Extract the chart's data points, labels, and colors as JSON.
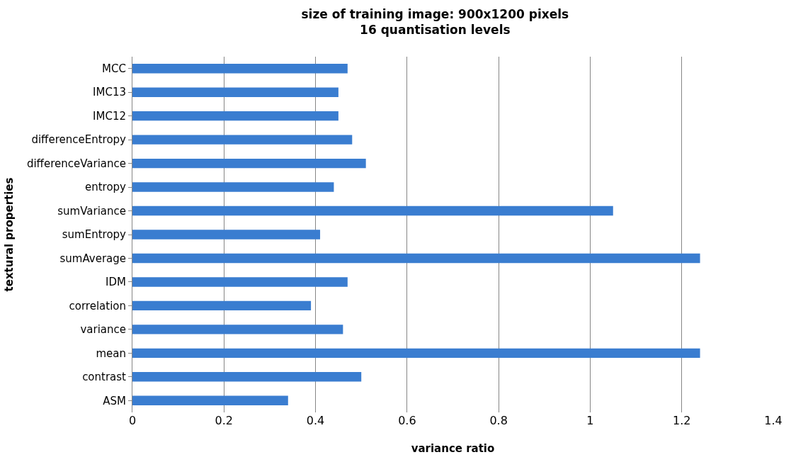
{
  "chart_data": {
    "type": "bar",
    "orientation": "horizontal",
    "title": "size of training image: 900x1200 pixels\n16 quantisation levels",
    "xlabel": "variance ratio",
    "ylabel": "textural properties",
    "categories": [
      "MCC",
      "IMC13",
      "IMC12",
      "differenceEntropy",
      "differenceVariance",
      "entropy",
      "sumVariance",
      "sumEntropy",
      "sumAverage",
      "IDM",
      "correlation",
      "variance",
      "mean",
      "contrast",
      "ASM"
    ],
    "values": [
      0.47,
      0.45,
      0.45,
      0.48,
      0.51,
      0.44,
      1.05,
      0.41,
      1.24,
      0.47,
      0.39,
      0.46,
      1.24,
      0.5,
      0.34
    ],
    "color": "#3a7dd0",
    "xlim": [
      0,
      1.4
    ],
    "xticks": [
      0,
      0.2,
      0.4,
      0.6,
      0.8,
      1,
      1.2,
      1.4
    ],
    "grid": "x",
    "legend": false
  }
}
